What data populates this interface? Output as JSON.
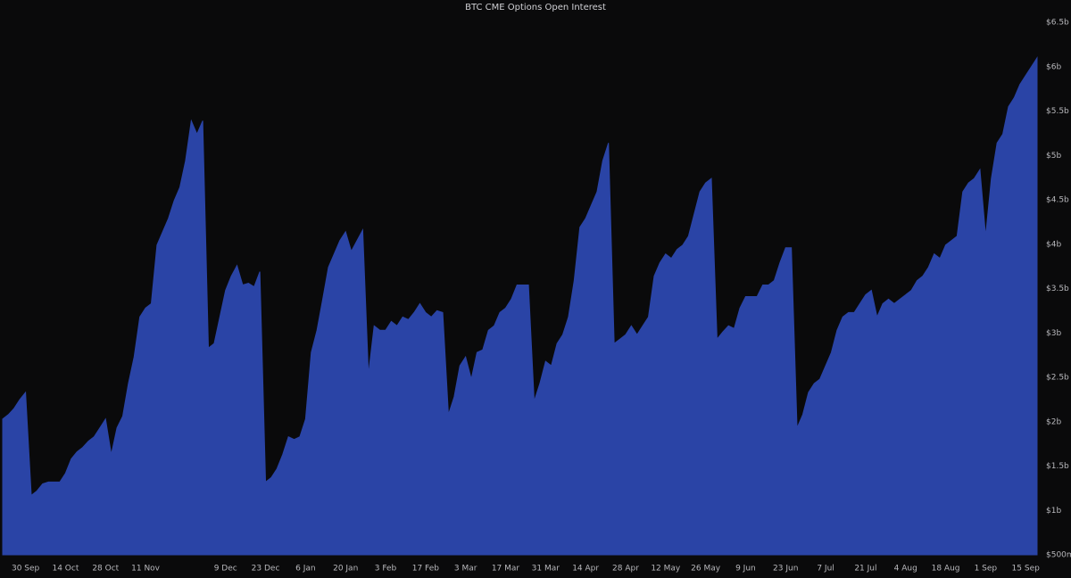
{
  "chart_data": {
    "type": "area",
    "title": "BTC CME Options Open Interest",
    "color": "#2a44a6",
    "categories": [
      null,
      null,
      null,
      null,
      "30 Sep",
      null,
      null,
      null,
      null,
      null,
      null,
      "14 Oct",
      null,
      null,
      null,
      null,
      null,
      null,
      "28 Oct",
      null,
      null,
      null,
      null,
      null,
      null,
      "11 Nov",
      null,
      null,
      null,
      null,
      null,
      null,
      null,
      null,
      null,
      null,
      null,
      null,
      null,
      "9 Dec",
      null,
      null,
      null,
      null,
      null,
      null,
      "23 Dec",
      null,
      null,
      null,
      null,
      null,
      null,
      "6 Jan",
      null,
      null,
      null,
      null,
      null,
      null,
      "20 Jan",
      null,
      null,
      null,
      null,
      null,
      null,
      "3 Feb",
      null,
      null,
      null,
      null,
      null,
      null,
      "17 Feb",
      null,
      null,
      null,
      null,
      null,
      null,
      "3 Mar",
      null,
      null,
      null,
      null,
      null,
      null,
      "17 Mar",
      null,
      null,
      null,
      null,
      null,
      null,
      "31 Mar",
      null,
      null,
      null,
      null,
      null,
      null,
      "14 Apr",
      null,
      null,
      null,
      null,
      null,
      null,
      "28 Apr",
      null,
      null,
      null,
      null,
      null,
      null,
      "12 May",
      null,
      null,
      null,
      null,
      null,
      null,
      "26 May",
      null,
      null,
      null,
      null,
      null,
      null,
      "9 Jun",
      null,
      null,
      null,
      null,
      null,
      null,
      "23 Jun",
      null,
      null,
      null,
      null,
      null,
      null,
      "7 Jul",
      null,
      null,
      null,
      null,
      null,
      null,
      "21 Jul",
      null,
      null,
      null,
      null,
      null,
      null,
      "4 Aug",
      null,
      null,
      null,
      null,
      null,
      null,
      "18 Aug",
      null,
      null,
      null,
      null,
      null,
      null,
      "1 Sep",
      null,
      null,
      null,
      null,
      null,
      null,
      "15 Sep",
      null,
      null
    ],
    "values": [
      2.03,
      2.08,
      2.15,
      2.25,
      2.33,
      1.17,
      1.22,
      1.3,
      1.32,
      1.32,
      1.32,
      1.42,
      1.58,
      1.66,
      1.71,
      1.78,
      1.83,
      1.93,
      2.03,
      1.63,
      1.93,
      2.06,
      2.43,
      2.73,
      3.18,
      3.28,
      3.33,
      3.99,
      4.14,
      4.29,
      4.49,
      4.64,
      4.94,
      5.39,
      5.24,
      5.39,
      2.83,
      2.88,
      3.18,
      3.48,
      3.64,
      3.76,
      3.54,
      3.56,
      3.52,
      3.69,
      1.32,
      1.37,
      1.47,
      1.63,
      1.83,
      1.8,
      1.83,
      2.03,
      2.78,
      3.03,
      3.38,
      3.74,
      3.89,
      4.04,
      4.14,
      3.92,
      4.04,
      4.16,
      2.53,
      3.08,
      3.03,
      3.03,
      3.13,
      3.08,
      3.18,
      3.15,
      3.23,
      3.33,
      3.23,
      3.18,
      3.25,
      3.23,
      2.08,
      2.28,
      2.63,
      2.73,
      2.48,
      2.78,
      2.81,
      3.03,
      3.08,
      3.23,
      3.28,
      3.38,
      3.54,
      3.54,
      3.54,
      2.23,
      2.43,
      2.68,
      2.63,
      2.88,
      2.98,
      3.18,
      3.59,
      4.19,
      4.29,
      4.44,
      4.59,
      4.94,
      5.14,
      2.88,
      2.93,
      2.98,
      3.08,
      2.98,
      3.08,
      3.18,
      3.64,
      3.79,
      3.89,
      3.84,
      3.94,
      3.99,
      4.09,
      4.34,
      4.59,
      4.69,
      4.74,
      2.93,
      3.01,
      3.08,
      3.05,
      3.28,
      3.41,
      3.41,
      3.41,
      3.54,
      3.54,
      3.59,
      3.79,
      3.96,
      3.96,
      1.93,
      2.08,
      2.33,
      2.43,
      2.48,
      2.63,
      2.78,
      3.03,
      3.18,
      3.23,
      3.23,
      3.33,
      3.43,
      3.48,
      3.18,
      3.33,
      3.38,
      3.33,
      3.38,
      3.43,
      3.48,
      3.59,
      3.64,
      3.74,
      3.89,
      3.84,
      3.99,
      4.04,
      4.09,
      4.59,
      4.69,
      4.74,
      4.84,
      4.09,
      4.74,
      5.14,
      5.24,
      5.55,
      5.65,
      5.8,
      5.9,
      6.0,
      6.1
    ],
    "ylim": [
      0.5,
      6.5
    ],
    "yticks": [
      {
        "value": 0.5,
        "label": "$500m"
      },
      {
        "value": 1,
        "label": "$1b"
      },
      {
        "value": 1.5,
        "label": "$1.5b"
      },
      {
        "value": 2,
        "label": "$2b"
      },
      {
        "value": 2.5,
        "label": "$2.5b"
      },
      {
        "value": 3,
        "label": "$3b"
      },
      {
        "value": 3.5,
        "label": "$3.5b"
      },
      {
        "value": 4,
        "label": "$4b"
      },
      {
        "value": 4.5,
        "label": "$4.5b"
      },
      {
        "value": 5,
        "label": "$5b"
      },
      {
        "value": 5.5,
        "label": "$5.5b"
      },
      {
        "value": 6,
        "label": "$6b"
      },
      {
        "value": 6.5,
        "label": "$6.5b"
      }
    ],
    "grid": false
  }
}
